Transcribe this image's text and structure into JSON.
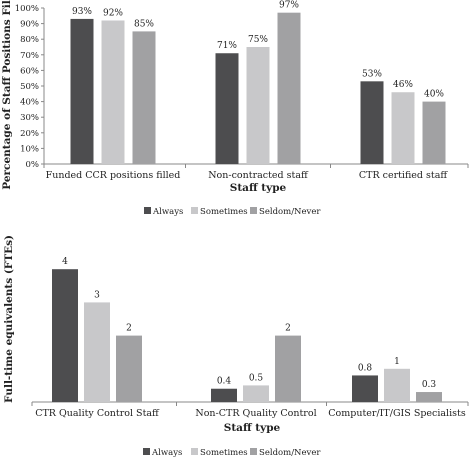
{
  "chart_data": [
    {
      "type": "bar",
      "title": "",
      "xlabel": "Staff type",
      "ylabel": "Percentage of Staff Positions Filled",
      "ylim": [
        0,
        100
      ],
      "yticks": [
        "0%",
        "10%",
        "20%",
        "30%",
        "40%",
        "50%",
        "60%",
        "70%",
        "80%",
        "90%",
        "100%"
      ],
      "categories": [
        "Funded CCR positions filled",
        "Non-contracted staff",
        "CTR certified staff"
      ],
      "series": [
        {
          "name": "Always",
          "color": "#4d4d4f",
          "values": [
            93,
            71,
            53
          ],
          "labels": [
            "93%",
            "71%",
            "53%"
          ]
        },
        {
          "name": "Sometimes",
          "color": "#c8c8ca",
          "values": [
            92,
            75,
            46
          ],
          "labels": [
            "92%",
            "75%",
            "46%"
          ]
        },
        {
          "name": "Seldom/Never",
          "color": "#a1a1a3",
          "values": [
            85,
            97,
            40
          ],
          "labels": [
            "85%",
            "97%",
            "40%"
          ]
        }
      ],
      "grid": false,
      "legend": "bottom"
    },
    {
      "type": "bar",
      "title": "",
      "xlabel": "Staff type",
      "ylabel": "Full-time equivalents (FTEs)",
      "ylim": [
        0,
        5
      ],
      "categories": [
        "CTR Quality Control Staff",
        "Non-CTR Quality Control",
        "Computer/IT/GIS Specialists"
      ],
      "series": [
        {
          "name": "Always",
          "color": "#4d4d4f",
          "values": [
            4,
            0.4,
            0.8
          ],
          "labels": [
            "4",
            "0.4",
            "0.8"
          ]
        },
        {
          "name": "Sometimes",
          "color": "#c8c8ca",
          "values": [
            3,
            0.5,
            1
          ],
          "labels": [
            "3",
            "0.5",
            "1"
          ]
        },
        {
          "name": "Seldom/Never",
          "color": "#a1a1a3",
          "values": [
            2,
            2,
            0.3
          ],
          "labels": [
            "2",
            "2",
            "0.3"
          ]
        }
      ],
      "grid": false,
      "legend": "bottom"
    }
  ]
}
